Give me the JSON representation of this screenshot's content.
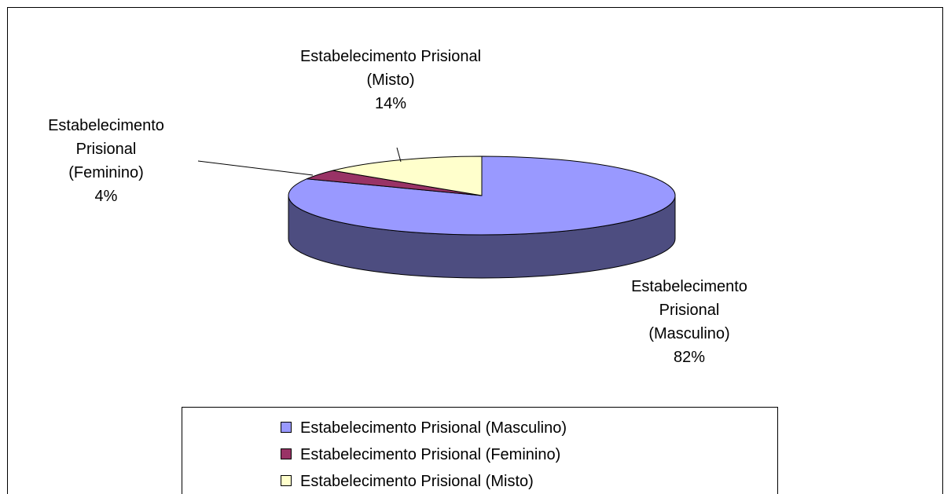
{
  "chart_data": {
    "type": "pie3d",
    "categories": [
      "Estabelecimento Prisional (Masculino)",
      "Estabelecimento Prisional (Feminino)",
      "Estabelecimento Prisional (Misto)"
    ],
    "values": [
      82,
      4,
      14
    ],
    "value_labels": [
      "82%",
      "4%",
      "14%"
    ],
    "colors": [
      "#9999ff",
      "#993366",
      "#ffffcc"
    ],
    "legend": "bottom"
  }
}
